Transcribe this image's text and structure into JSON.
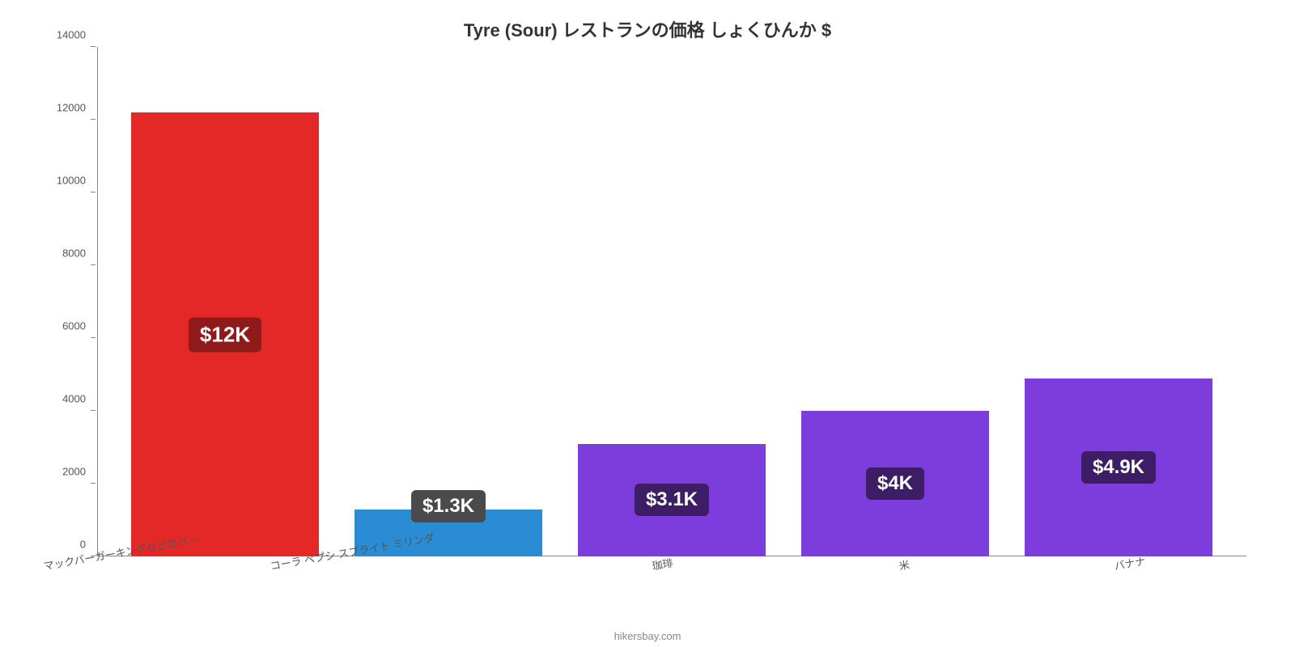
{
  "chart": {
    "type": "bar",
    "title": "Tyre (Sour) レストランの価格 しょくひんか $",
    "title_fontsize": 22,
    "title_color": "#333333",
    "background_color": "#ffffff",
    "axis_color": "#888888",
    "tick_label_color": "#555555",
    "tick_label_fontsize": 13,
    "y": {
      "min": 0,
      "max": 14000,
      "ticks": [
        0,
        2000,
        4000,
        6000,
        8000,
        10000,
        12000,
        14000
      ]
    },
    "x_label_fontsize": 13,
    "x_label_rotation_deg": -10,
    "bar_width_ratio": 0.84,
    "categories": [
      {
        "label": "マックバーガーキングなどのバー",
        "value": 12200,
        "display": "$12K",
        "color": "#e42727",
        "badge_bg": "#8f1a1a",
        "badge_fontsize": 26
      },
      {
        "label": "コーラ ペプシ スプライト ミリンダ",
        "value": 1300,
        "display": "$1.3K",
        "color": "#2a8dd4",
        "badge_bg": "#4a4a4a",
        "badge_fontsize": 24
      },
      {
        "label": "珈琲",
        "value": 3100,
        "display": "$3.1K",
        "color": "#7d3cdc",
        "badge_bg": "#3d1e66",
        "badge_fontsize": 24
      },
      {
        "label": "米",
        "value": 4000,
        "display": "$4K",
        "color": "#7d3cdc",
        "badge_bg": "#3d1e66",
        "badge_fontsize": 24
      },
      {
        "label": "バナナ",
        "value": 4900,
        "display": "$4.9K",
        "color": "#7d3cdc",
        "badge_bg": "#3d1e66",
        "badge_fontsize": 24
      }
    ],
    "attribution": "hikersbay.com",
    "attribution_fontsize": 13,
    "attribution_color": "#888888"
  }
}
